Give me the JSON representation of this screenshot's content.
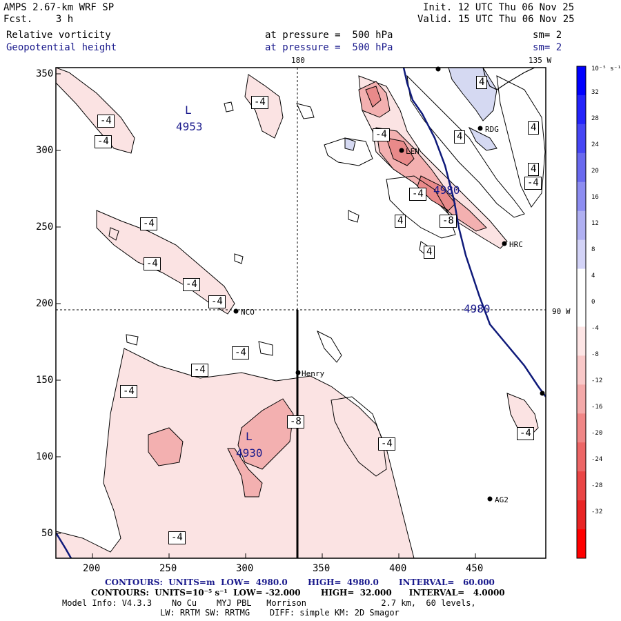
{
  "header": {
    "model": "AMPS 2.67-km WRF SP",
    "forecast": "Fcst.    3 h",
    "init": "Init. 12 UTC Thu 06 Nov 25",
    "valid": "Valid. 15 UTC Thu 06 Nov 25",
    "field1": "Relative vorticity",
    "field1_pressure": "at pressure =  500 hPa",
    "field1_sm": "sm= 2",
    "field2": "Geopotential height",
    "field2_pressure": "at pressure =  500 hPa",
    "field2_sm": "sm= 2"
  },
  "map": {
    "top_labels": [
      "180",
      "135 W"
    ],
    "right_label": "90 W",
    "x_ticks": [
      "200",
      "250",
      "300",
      "350",
      "400",
      "450"
    ],
    "y_ticks": [
      "350",
      "300",
      "250",
      "200",
      "150",
      "100",
      "50"
    ],
    "stations": [
      "NCO",
      "Henry",
      "RDG",
      "HRC",
      "AG2",
      "LEN"
    ],
    "lows": [
      {
        "letter": "L",
        "value": "4953"
      },
      {
        "letter": "L",
        "value": "4930"
      }
    ],
    "height_labels": [
      "4980",
      "4980"
    ],
    "contour_labels": [
      "-4",
      "-4",
      "-4",
      "-4",
      "-4",
      "-4",
      "-4",
      "-4",
      "-4",
      "-4",
      "-4",
      "-4",
      "-4",
      "-8",
      "-8",
      "-4",
      "4",
      "4",
      "4",
      "4",
      "4",
      "4",
      "-4",
      "-4"
    ],
    "colors": {
      "blue_line": "#0f1a7a",
      "pink": "#f9e1e1",
      "pink2": "#f3b5b5",
      "pink3": "#e98585",
      "lightblue": "#d5d9f2"
    }
  },
  "colorbar": {
    "unit": "10⁻⁵ s⁻¹",
    "labels": [
      "32",
      "28",
      "24",
      "20",
      "16",
      "12",
      "8",
      "4",
      "0",
      "-4",
      "-8",
      "-12",
      "-16",
      "-20",
      "-24",
      "-28",
      "-32"
    ],
    "colors": [
      "#0000ff",
      "#2424fb",
      "#4646f5",
      "#6969ef",
      "#8d8df1",
      "#b0b0f2",
      "#d3d3f7",
      "#ffffff",
      "#ffffff",
      "#fde5e5",
      "#f9c8c8",
      "#f4a9a9",
      "#f08686",
      "#ed6666",
      "#ea4545",
      "#e92424",
      "#ff0000"
    ]
  },
  "footer": {
    "line1": "CONTOURS:  UNITS=m  LOW=  4980.0       HIGH=  4980.0       INTERVAL=   60.000",
    "line2": "CONTOURS:  UNITS=10⁻⁵ s⁻¹  LOW= -32.000       HIGH=  32.000      INTERVAL=   4.0000",
    "line3": "Model Info: V4.3.3    No Cu    MYJ PBL   Morrison               2.7 km,  60 levels,",
    "line4": "LW: RRTM SW: RRTMG    DIFF: simple KM: 2D Smagor"
  }
}
